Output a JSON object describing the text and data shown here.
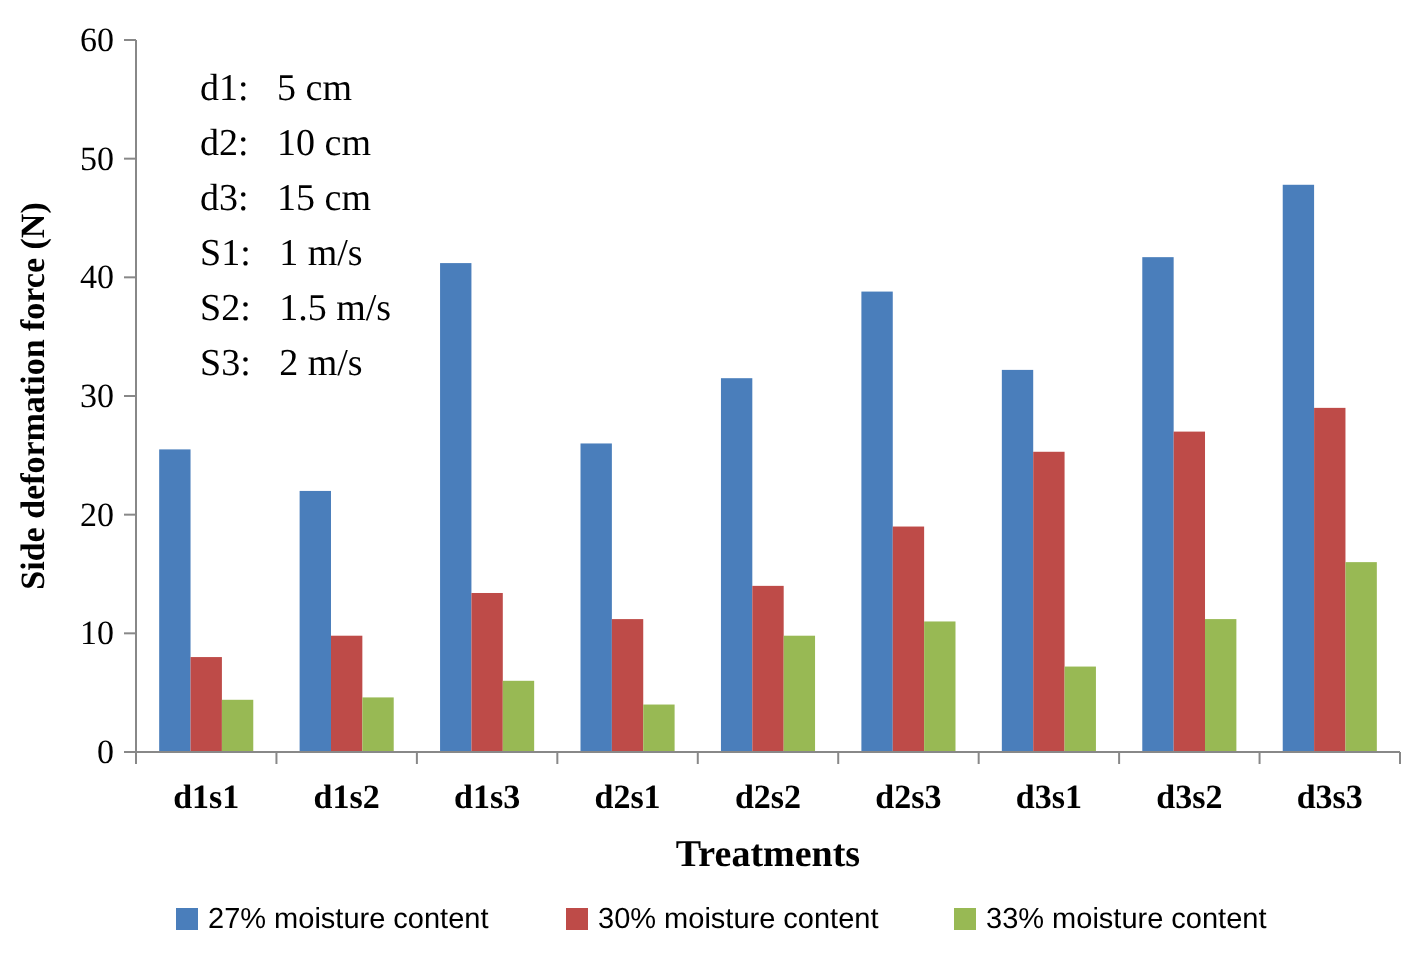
{
  "chart_data": {
    "type": "bar",
    "xlabel": "Treatments",
    "ylabel": "Side deformation force (N)",
    "categories": [
      "d1s1",
      "d1s2",
      "d1s3",
      "d2s1",
      "d2s2",
      "d2s3",
      "d3s1",
      "d3s2",
      "d3s3"
    ],
    "series": [
      {
        "name": "27% moisture content",
        "color": "#4a7ebb",
        "values": [
          25.5,
          22,
          41.2,
          26,
          31.5,
          38.8,
          32.2,
          41.7,
          47.8
        ]
      },
      {
        "name": "30% moisture content",
        "color": "#be4b48",
        "values": [
          8,
          9.8,
          13.4,
          11.2,
          14,
          19,
          25.3,
          27,
          29
        ]
      },
      {
        "name": "33% moisture content",
        "color": "#98b954",
        "values": [
          4.4,
          4.6,
          6,
          4,
          9.8,
          11,
          7.2,
          11.2,
          16
        ]
      }
    ],
    "ylim": [
      0,
      60
    ],
    "yticks": [
      0,
      10,
      20,
      30,
      40,
      50,
      60
    ],
    "grid": false,
    "legend": "bottom",
    "annotations": [
      "d1:   5 cm",
      "d2:   10 cm",
      "d3:   15 cm",
      "S1:   1 m/s",
      "S2:   1.5 m/s",
      "S3:   2 m/s"
    ]
  }
}
